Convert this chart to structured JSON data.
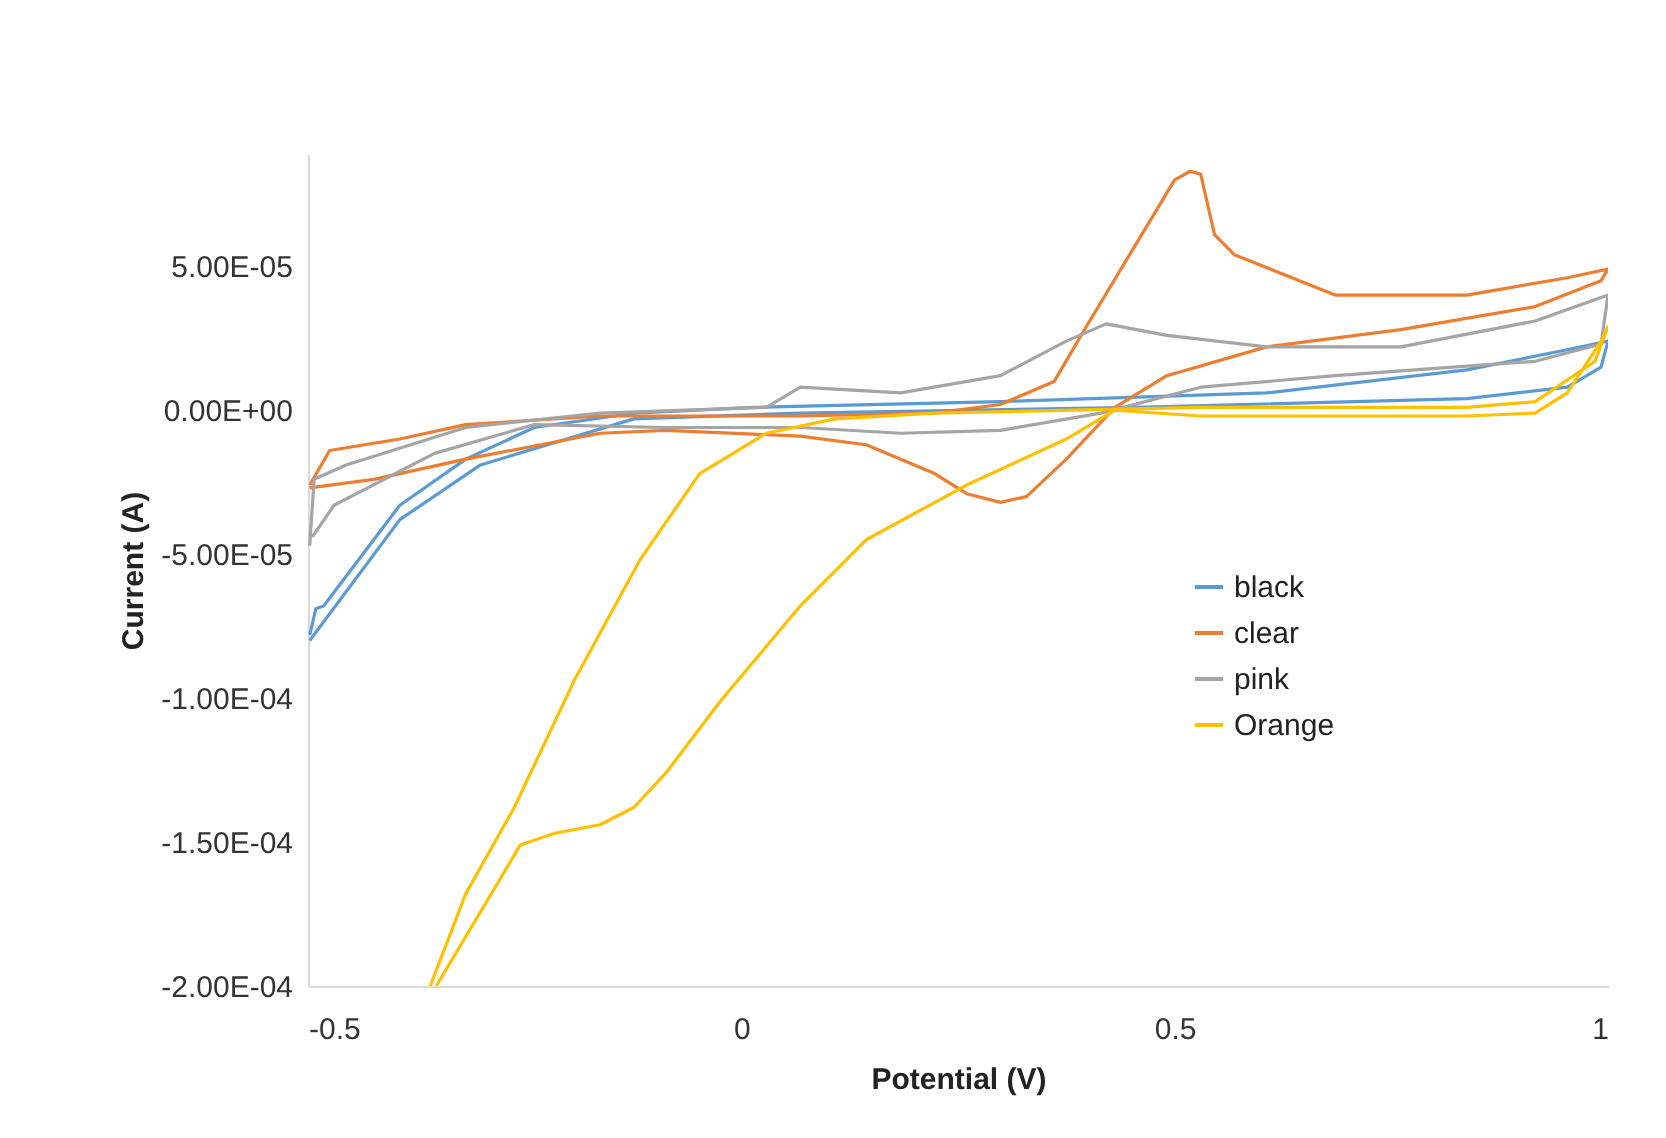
{
  "chart_data": {
    "type": "line",
    "xlabel": "Potential (V)",
    "ylabel": "Current (A)",
    "xlim": [
      -0.5,
      1
    ],
    "ylim": [
      -0.0002,
      8.9e-05
    ],
    "xticks": [
      -0.5,
      0,
      0.5,
      1
    ],
    "yticks": [
      {
        "value": -0.0002,
        "label": "-2.00E-04"
      },
      {
        "value": -0.00015,
        "label": "-1.50E-04"
      },
      {
        "value": -0.0001,
        "label": "-1.00E-04"
      },
      {
        "value": -5e-05,
        "label": "-5.00E-05"
      },
      {
        "value": 0,
        "label": "0.00E+00"
      },
      {
        "value": 5e-05,
        "label": "5.00E-05"
      }
    ],
    "legend": "right",
    "grid": false,
    "series": [
      {
        "name": "black",
        "color": "#5b9bd5",
        "x": [
          -0.498,
          -0.491,
          -0.482,
          -0.394,
          -0.318,
          -0.239,
          -0.124,
          0.015,
          0.299,
          0.606,
          0.837,
          0.953,
          1.0,
          0.992,
          0.953,
          0.837,
          0.454,
          0.068,
          -0.124,
          -0.301,
          -0.394,
          -0.498
        ],
        "values": [
          -7.8e-05,
          -6.9e-05,
          -6.8e-05,
          -3.3e-05,
          -1.7e-05,
          -6e-06,
          -1e-06,
          1e-06,
          3e-06,
          6e-06,
          1.4e-05,
          2.1e-05,
          2.4e-05,
          1.5e-05,
          8e-06,
          4e-06,
          1e-06,
          -1e-06,
          -3e-06,
          -1.9e-05,
          -3.8e-05,
          -8e-05
        ]
      },
      {
        "name": "clear",
        "color": "#ed7d31",
        "x": [
          -0.498,
          -0.475,
          -0.394,
          -0.318,
          -0.163,
          0.068,
          0.223,
          0.299,
          0.361,
          0.398,
          0.454,
          0.5,
          0.518,
          0.53,
          0.546,
          0.569,
          0.685,
          0.837,
          0.953,
          1.0,
          0.992,
          0.916,
          0.761,
          0.606,
          0.491,
          0.431,
          0.375,
          0.329,
          0.299,
          0.26,
          0.223,
          0.144,
          0.068,
          -0.087,
          -0.163,
          -0.318,
          -0.424,
          -0.498
        ],
        "values": [
          -2.6e-05,
          -1.4e-05,
          -1e-05,
          -5e-06,
          -2e-06,
          -2e-06,
          -1e-06,
          2e-06,
          1e-05,
          2.9e-05,
          5.7e-05,
          8e-05,
          8.3e-05,
          8.2e-05,
          6.1e-05,
          5.4e-05,
          4e-05,
          4e-05,
          4.6e-05,
          4.9e-05,
          4.5e-05,
          3.6e-05,
          2.8e-05,
          2.2e-05,
          1.2e-05,
          1e-06,
          -1.7e-05,
          -3e-05,
          -3.2e-05,
          -2.9e-05,
          -2.2e-05,
          -1.2e-05,
          -9e-06,
          -7e-06,
          -8e-06,
          -1.7e-05,
          -2.4e-05,
          -2.7e-05
        ]
      },
      {
        "name": "pink",
        "color": "#a5a5a5",
        "x": [
          -0.498,
          -0.493,
          -0.456,
          -0.318,
          -0.163,
          0.029,
          0.068,
          0.184,
          0.299,
          0.375,
          0.421,
          0.491,
          0.606,
          0.761,
          0.916,
          1.0,
          0.992,
          0.916,
          0.685,
          0.53,
          0.415,
          0.299,
          0.184,
          0.068,
          -0.087,
          -0.239,
          -0.354,
          -0.47,
          -0.495
        ],
        "values": [
          -4.7e-05,
          -2.4e-05,
          -1.9e-05,
          -6e-06,
          -1e-06,
          1e-06,
          8e-06,
          6e-06,
          1.2e-05,
          2.4e-05,
          3e-05,
          2.6e-05,
          2.2e-05,
          2.2e-05,
          3.1e-05,
          4e-05,
          2.3e-05,
          1.7e-05,
          1.2e-05,
          8e-06,
          -1e-06,
          -7e-06,
          -8e-06,
          -6e-06,
          -6e-06,
          -5e-06,
          -1.5e-05,
          -3.3e-05,
          -4.4e-05
        ]
      },
      {
        "name": "Orange",
        "color": "#ffc000",
        "x": [
          -0.359,
          -0.318,
          -0.262,
          -0.193,
          -0.117,
          -0.048,
          0.029,
          0.108,
          0.223,
          0.53,
          0.837,
          0.916,
          0.985,
          1.0,
          0.992,
          0.953,
          0.916,
          0.837,
          0.53,
          0.431,
          0.375,
          0.26,
          0.144,
          0.068,
          0.029,
          -0.024,
          -0.087,
          -0.124,
          -0.163,
          -0.216,
          -0.255,
          -0.352
        ],
        "values": [
          -0.0002,
          -0.000168,
          -0.000138,
          -9.4e-05,
          -5.2e-05,
          -2.2e-05,
          -8e-06,
          -3e-06,
          -1e-06,
          1e-06,
          1e-06,
          3e-06,
          1.7e-05,
          2.9e-05,
          2.4e-05,
          6e-06,
          -1e-06,
          -2e-06,
          -2e-06,
          0,
          -1e-05,
          -2.6e-05,
          -4.5e-05,
          -6.8e-05,
          -8.2e-05,
          -0.000101,
          -0.000126,
          -0.000138,
          -0.000144,
          -0.000147,
          -0.000151,
          -0.0002
        ]
      }
    ]
  }
}
